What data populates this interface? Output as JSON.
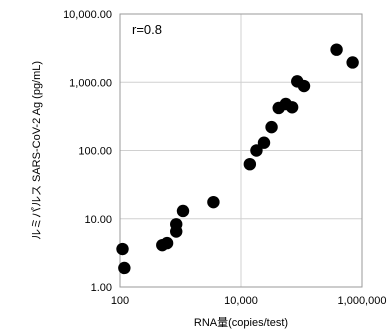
{
  "chart_data": {
    "type": "scatter",
    "title": "",
    "xlabel": "RNA量(copies/test)",
    "ylabel": "ルミパルス  SARS-CoV-2 Ag (pg/mL)",
    "xscale": "log",
    "yscale": "log",
    "xlim": [
      100,
      1000000
    ],
    "ylim": [
      1,
      10000
    ],
    "grid": true,
    "legend": "none",
    "annotation": "r=0.8",
    "x_ticks": [
      {
        "value": 100,
        "label": "100"
      },
      {
        "value": 10000,
        "label": "10,000"
      },
      {
        "value": 1000000,
        "label": "1,000,000"
      }
    ],
    "y_ticks": [
      {
        "value": 1,
        "label": "1.00"
      },
      {
        "value": 10,
        "label": "10.00"
      },
      {
        "value": 100,
        "label": "100.00"
      },
      {
        "value": 1000,
        "label": "1,000.00"
      },
      {
        "value": 10000,
        "label": "10,000.00"
      }
    ],
    "marker_color": "#000000",
    "points": [
      {
        "x": 110,
        "y": 3.6
      },
      {
        "x": 118,
        "y": 1.9
      },
      {
        "x": 500,
        "y": 4.1
      },
      {
        "x": 600,
        "y": 4.4
      },
      {
        "x": 850,
        "y": 6.5
      },
      {
        "x": 850,
        "y": 8.3
      },
      {
        "x": 1100,
        "y": 13
      },
      {
        "x": 3500,
        "y": 17.5
      },
      {
        "x": 14000,
        "y": 63
      },
      {
        "x": 18000,
        "y": 100
      },
      {
        "x": 24000,
        "y": 130
      },
      {
        "x": 32000,
        "y": 220
      },
      {
        "x": 42000,
        "y": 420
      },
      {
        "x": 55000,
        "y": 480
      },
      {
        "x": 70000,
        "y": 430
      },
      {
        "x": 85000,
        "y": 1030
      },
      {
        "x": 110000,
        "y": 880
      },
      {
        "x": 380000,
        "y": 3000
      },
      {
        "x": 700000,
        "y": 1950
      }
    ]
  }
}
